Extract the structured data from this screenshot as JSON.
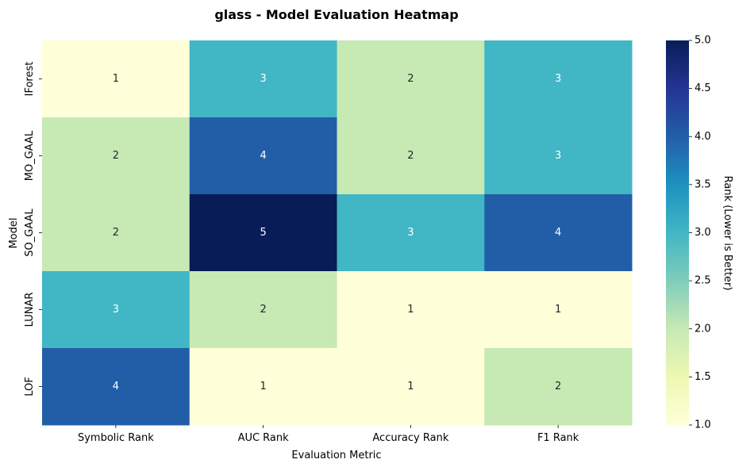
{
  "chart_data": {
    "type": "heatmap",
    "title": "glass - Model Evaluation Heatmap",
    "xlabel": "Evaluation Metric",
    "ylabel": "Model",
    "x_categories": [
      "Symbolic Rank",
      "AUC Rank",
      "Accuracy Rank",
      "F1 Rank"
    ],
    "y_categories": [
      "IForest",
      "MO_GAAL",
      "SO_GAAL",
      "LUNAR",
      "LOF"
    ],
    "values": [
      [
        1,
        3,
        2,
        3
      ],
      [
        2,
        4,
        2,
        3
      ],
      [
        2,
        5,
        3,
        4
      ],
      [
        3,
        2,
        1,
        1
      ],
      [
        4,
        1,
        1,
        2
      ]
    ],
    "colorbar": {
      "label": "Rank (Lower is Better)",
      "range": [
        1.0,
        5.0
      ],
      "ticks": [
        "1.0",
        "1.5",
        "2.0",
        "2.5",
        "3.0",
        "3.5",
        "4.0",
        "4.5",
        "5.0"
      ]
    },
    "colormap": "YlGnBu",
    "value_colors": {
      "1": "#ffffd9",
      "2": "#c7e9b4",
      "3": "#41b6c4",
      "4": "#225ea8",
      "5": "#081d58"
    },
    "annotation_text_colors": {
      "light": "#ffffff",
      "dark": "#262626"
    }
  }
}
